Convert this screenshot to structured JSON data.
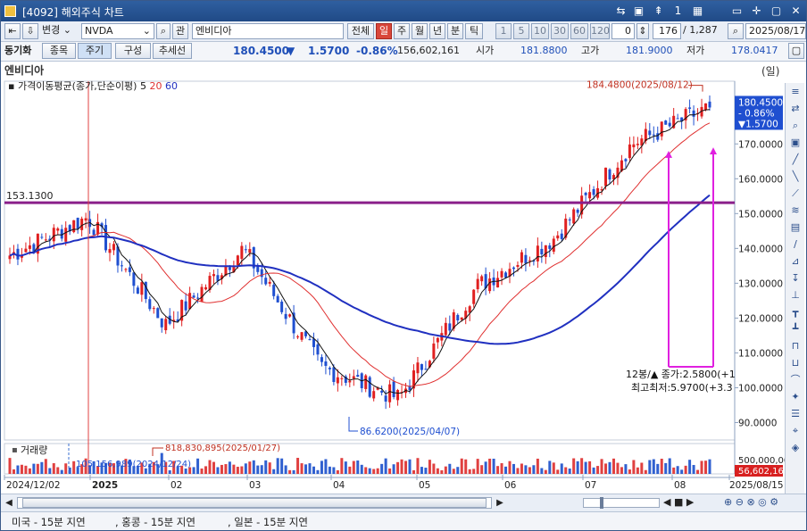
{
  "window": {
    "title": "[4092] 해외주식 차트",
    "buttons": [
      "⇆",
      "▣",
      "⇞",
      "1",
      "▦",
      "▭",
      "✛",
      "▢",
      "✕"
    ]
  },
  "toolbar1": {
    "change_label": "변경",
    "symbol": "NVDA",
    "search_icon": "search-icon",
    "relation_label": "관",
    "name": "엔비디아",
    "all_label": "전체",
    "periods": [
      "일",
      "주",
      "월",
      "년",
      "분",
      "틱"
    ],
    "active_period": "일",
    "intervals": [
      "1",
      "5",
      "10",
      "30",
      "60",
      "120"
    ],
    "count_value": "0",
    "bars_shown": "176",
    "bars_total": "/ 1,287",
    "date": "2025/08/17"
  },
  "toolbar2": {
    "sync_label": "동기화",
    "tabs": [
      "종목",
      "주기",
      "구성",
      "추세선"
    ],
    "price": "180.4500",
    "change_arrow": "▼",
    "change": "1.5700",
    "change_pct": "-0.86%",
    "volume": "156,602,161",
    "open_label": "시가",
    "open": "181.8800",
    "high_label": "고가",
    "high": "181.9000",
    "low_label": "저가",
    "low": "178.0417"
  },
  "chart": {
    "title": "엔비디아",
    "unit_label": "(일)",
    "ma_legend_label": "가격이동평균(종가,단순이평)",
    "ma_periods": [
      "5",
      "20",
      "60"
    ],
    "ma_colors": [
      "#111111",
      "#e03030",
      "#2030c0"
    ],
    "hline_label": "153.1300",
    "hline_value": 153.13,
    "high_annot": "184.4800(2025/08/12)",
    "low_annot": "86.6200(2025/04/07)",
    "box_text_1": "12봉/▲ 종가:2.5800(+1",
    "box_text_2": "최고최저:5.9700(+3.3",
    "current_box": [
      "180.4500",
      "- 0.86%",
      "▼1.5700"
    ],
    "y_ticks": [
      "170.0000",
      "160.0000",
      "150.0000",
      "140.0000",
      "130.0000",
      "120.0000",
      "110.0000",
      "100.0000",
      "90.0000"
    ],
    "volume_label": "거래량",
    "vol_max_annot": "818,830,895(2025/01/27)",
    "vol_min_annot": "105,156,989(2024/12/24)",
    "vol_ticks": [
      "500,000,00",
      "56,602,16"
    ],
    "x_ticks": [
      "2024/12/02",
      "2025",
      "02",
      "03",
      "04",
      "05",
      "06",
      "07",
      "08",
      "2025/08/15"
    ]
  },
  "chart_data": {
    "type": "candlestick",
    "title": "엔비디아",
    "x_range": [
      "2024/12/02",
      "2025/08/15"
    ],
    "ylim": [
      85,
      188
    ],
    "y_ticks": [
      90,
      100,
      110,
      120,
      130,
      140,
      150,
      160,
      170
    ],
    "series": [
      {
        "name": "5",
        "type": "line"
      },
      {
        "name": "20",
        "type": "line"
      },
      {
        "name": "60",
        "type": "line"
      }
    ],
    "annotations": [
      {
        "label": "184.4800(2025/08/12)",
        "value": 184.48
      },
      {
        "label": "86.6200(2025/04/07)",
        "value": 86.62
      },
      {
        "label": "153.1300",
        "value": 153.13
      }
    ],
    "closing_anchors": [
      {
        "date": "2024/12/02",
        "close": 138
      },
      {
        "date": "2025/01/06",
        "close": 149
      },
      {
        "date": "2025/01/27",
        "close": 118
      },
      {
        "date": "2025/02/18",
        "close": 140
      },
      {
        "date": "2025/03/10",
        "close": 106
      },
      {
        "date": "2025/04/07",
        "close": 97
      },
      {
        "date": "2025/05/13",
        "close": 129
      },
      {
        "date": "2025/06/20",
        "close": 143
      },
      {
        "date": "2025/07/15",
        "close": 170
      },
      {
        "date": "2025/08/15",
        "close": 180.45
      }
    ],
    "volume": {
      "label": "거래량",
      "max": {
        "label": "818,830,895(2025/01/27)",
        "value": 818830895
      },
      "min": {
        "label": "105,156,989(2024/12/24)",
        "value": 105156989
      },
      "last": 156602161
    }
  },
  "palette": [
    "≡",
    "⇄",
    "⌕",
    "▣",
    "╱",
    "╲",
    "⟋",
    "≋",
    "▤",
    "∕",
    "⊿",
    "↧",
    "⊥",
    "┳",
    "┻",
    "⊓",
    "⊔",
    "⌒",
    "✦",
    "☰",
    "⌖",
    "◈"
  ],
  "status": {
    "items": [
      "미국 - 15분 지연",
      ", 홍콩 - 15분 지연",
      ", 일본 - 15분 지연"
    ]
  }
}
